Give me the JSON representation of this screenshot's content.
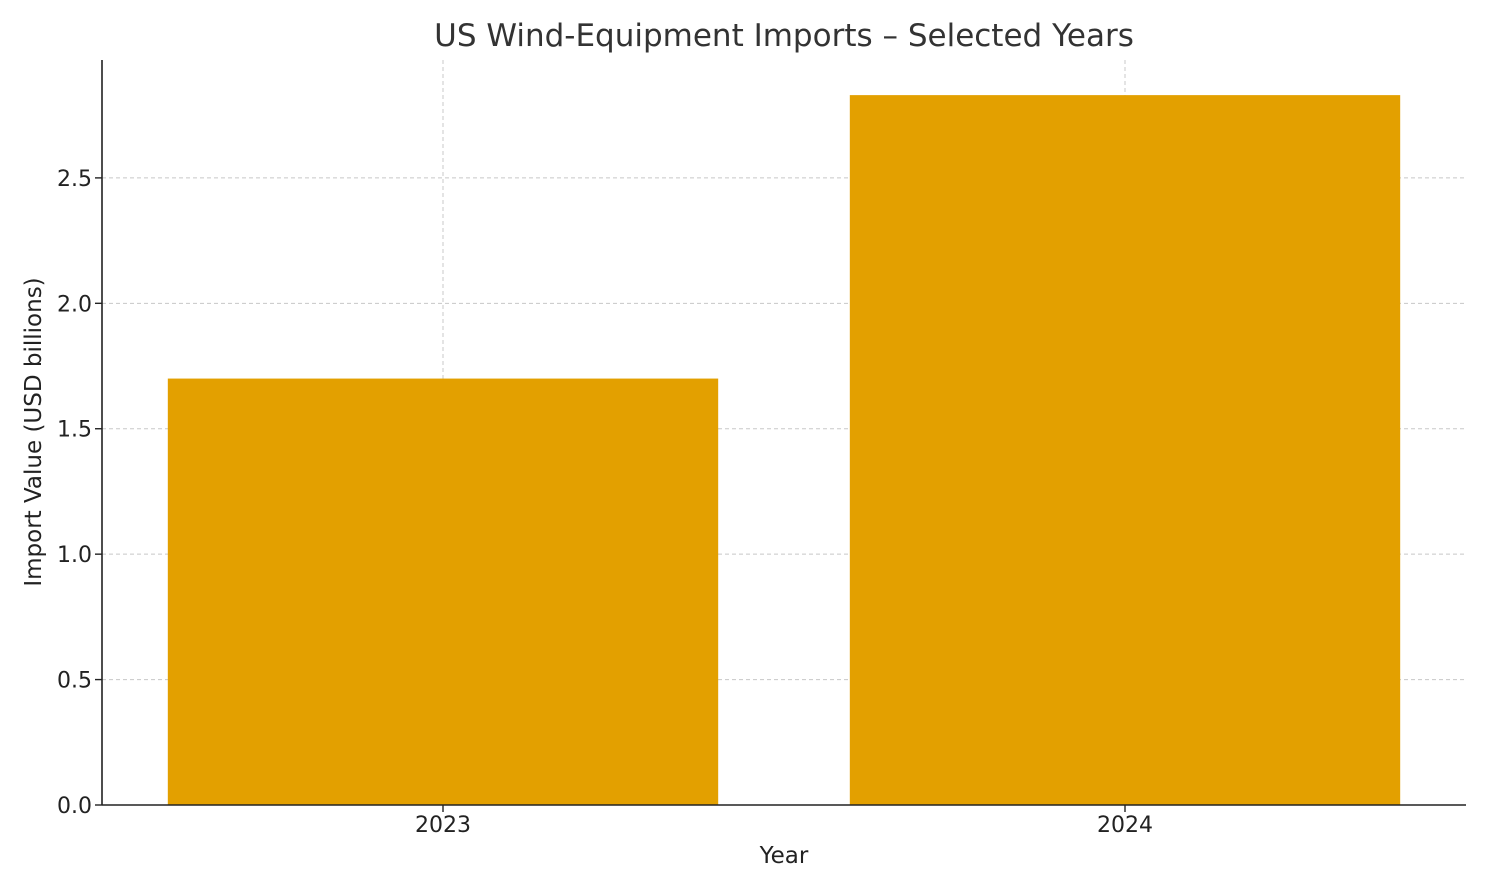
{
  "chart_data": {
    "type": "bar",
    "title": "US Wind-Equipment Imports – Selected Years",
    "xlabel": "Year",
    "ylabel": "Import Value (USD billions)",
    "categories": [
      "2023",
      "2024"
    ],
    "values": [
      1.7,
      2.83
    ],
    "ylim": [
      0,
      2.97
    ],
    "yticks": [
      0.0,
      0.5,
      1.0,
      1.5,
      2.0,
      2.5
    ],
    "ytick_labels": [
      "0.0",
      "0.5",
      "1.0",
      "1.5",
      "2.0",
      "2.5"
    ],
    "grid": true,
    "bar_color": "#e3a000"
  }
}
